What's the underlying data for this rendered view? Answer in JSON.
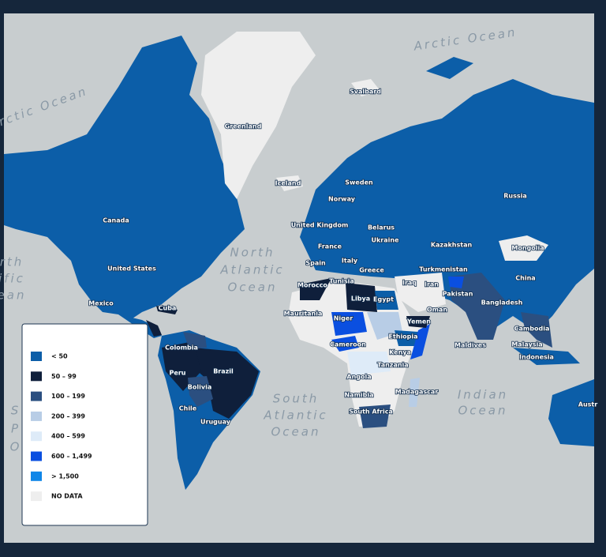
{
  "oceans": [
    {
      "lines": [
        "Arctic Ocean"
      ]
    },
    {
      "lines": [
        "rctic Ocean"
      ]
    },
    {
      "lines": [
        "North",
        "Atlantic",
        "Ocean"
      ]
    },
    {
      "lines": [
        "South",
        "Atlantic",
        "Ocean"
      ]
    },
    {
      "lines": [
        "Indian",
        "Ocean"
      ]
    },
    {
      "lines": [
        "rth",
        "ific",
        "ean"
      ]
    },
    {
      "lines": [
        "S",
        "P",
        "O"
      ]
    }
  ],
  "countries": [
    "Svalbard",
    "Greenland",
    "Iceland",
    "Canada",
    "United States",
    "Mexico",
    "Cuba",
    "Colombia",
    "Peru",
    "Brazil",
    "Bolivia",
    "Chile",
    "Uruguay",
    "Sweden",
    "Norway",
    "United Kingdom",
    "Belarus",
    "Ukraine",
    "France",
    "Spain",
    "Italy",
    "Greece",
    "Kazakhstan",
    "Mongolia",
    "Russia",
    "China",
    "Turkmenistan",
    "Iraq",
    "Iran",
    "Pakistan",
    "Bangladesh",
    "Morocco",
    "Tunisia",
    "Libya",
    "Egypt",
    "Mauritania",
    "Niger",
    "Yemen",
    "Oman",
    "Cameroon",
    "Ethiopia",
    "Kenya",
    "Tanzania",
    "Maldives",
    "Cambodia",
    "Malaysia",
    "Indonesia",
    "Angola",
    "Namibia",
    "Madagascar",
    "South Africa",
    "Austr"
  ],
  "legend": {
    "items": [
      {
        "label": "< 50",
        "color": "#0c5ea8"
      },
      {
        "label": "50 – 99",
        "color": "#0f1f3b"
      },
      {
        "label": "100 – 199",
        "color": "#2b4f80"
      },
      {
        "label": "200 – 399",
        "color": "#b8cde6"
      },
      {
        "label": "400 – 599",
        "color": "#deebf8"
      },
      {
        "label": "600 – 1,499",
        "color": "#0a4fe0"
      },
      {
        "label": "> 1,500",
        "color": "#0f86e8"
      },
      {
        "label": "NO DATA",
        "color": "#eeeeee"
      }
    ]
  }
}
